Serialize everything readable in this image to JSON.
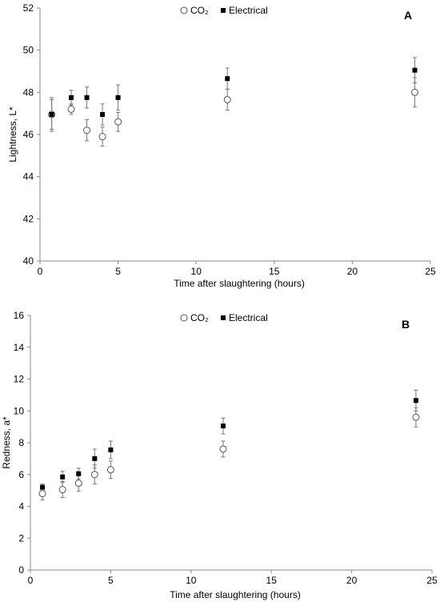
{
  "chart_data": [
    {
      "type": "scatter",
      "panel_label": "A",
      "xlabel": "Time  after slaughtering  (hours)",
      "ylabel": "Lightness, L*",
      "xlim": [
        0,
        25
      ],
      "ylim": [
        40,
        52
      ],
      "x_ticks": [
        0,
        5,
        10,
        15,
        20,
        25
      ],
      "y_ticks": [
        40,
        42,
        44,
        46,
        48,
        50,
        52
      ],
      "grid": false,
      "legend_position": "top-center",
      "series": [
        {
          "name": "CO₂",
          "marker": "open-circle",
          "color": "#555555",
          "points": [
            {
              "x": 0.75,
              "y": 46.95,
              "err": 0.8
            },
            {
              "x": 2,
              "y": 47.2,
              "err": 0.25
            },
            {
              "x": 3,
              "y": 46.2,
              "err": 0.5
            },
            {
              "x": 4,
              "y": 45.9,
              "err": 0.45
            },
            {
              "x": 5,
              "y": 46.6,
              "err": 0.45
            },
            {
              "x": 12,
              "y": 47.65,
              "err": 0.5
            },
            {
              "x": 24,
              "y": 48.0,
              "err": 0.7
            }
          ]
        },
        {
          "name": "Electrical",
          "marker": "filled-square",
          "color": "#000000",
          "points": [
            {
              "x": 0.75,
              "y": 46.95,
              "err": 0.7
            },
            {
              "x": 2,
              "y": 47.75,
              "err": 0.35
            },
            {
              "x": 3,
              "y": 47.75,
              "err": 0.5
            },
            {
              "x": 4,
              "y": 46.95,
              "err": 0.5
            },
            {
              "x": 5,
              "y": 47.75,
              "err": 0.6
            },
            {
              "x": 12,
              "y": 48.65,
              "err": 0.5
            },
            {
              "x": 24,
              "y": 49.05,
              "err": 0.6
            }
          ]
        }
      ]
    },
    {
      "type": "scatter",
      "panel_label": "B",
      "xlabel": "Time  after slaughtering  (hours)",
      "ylabel": "Redness, a*",
      "xlim": [
        0,
        25
      ],
      "ylim": [
        0,
        16
      ],
      "x_ticks": [
        0,
        5,
        10,
        15,
        20,
        25
      ],
      "y_ticks": [
        0,
        2,
        4,
        6,
        8,
        10,
        12,
        14,
        16
      ],
      "grid": false,
      "legend_position": "top-center",
      "series": [
        {
          "name": "CO₂",
          "marker": "open-circle",
          "color": "#555555",
          "points": [
            {
              "x": 0.75,
              "y": 4.8,
              "err": 0.4
            },
            {
              "x": 2,
              "y": 5.05,
              "err": 0.5
            },
            {
              "x": 3,
              "y": 5.45,
              "err": 0.5
            },
            {
              "x": 4,
              "y": 6.0,
              "err": 0.6
            },
            {
              "x": 5,
              "y": 6.3,
              "err": 0.55
            },
            {
              "x": 12,
              "y": 7.6,
              "err": 0.5
            },
            {
              "x": 24,
              "y": 9.6,
              "err": 0.6
            }
          ]
        },
        {
          "name": "Electrical",
          "marker": "filled-square",
          "color": "#000000",
          "points": [
            {
              "x": 0.75,
              "y": 5.2,
              "err": 0.2
            },
            {
              "x": 2,
              "y": 5.85,
              "err": 0.35
            },
            {
              "x": 3,
              "y": 6.05,
              "err": 0.35
            },
            {
              "x": 4,
              "y": 7.0,
              "err": 0.6
            },
            {
              "x": 5,
              "y": 7.55,
              "err": 0.55
            },
            {
              "x": 12,
              "y": 9.05,
              "err": 0.5
            },
            {
              "x": 24,
              "y": 10.65,
              "err": 0.65
            }
          ]
        }
      ]
    }
  ]
}
